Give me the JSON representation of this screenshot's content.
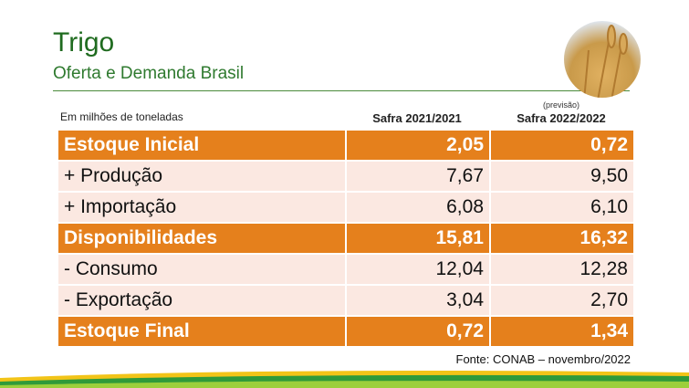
{
  "header": {
    "title": "Trigo",
    "subtitle": "Oferta e Demanda Brasil"
  },
  "table": {
    "unit_note": "Em milhões de toneladas",
    "columns": [
      "Safra 2021/2021",
      "Safra 2022/2022"
    ],
    "column_note": "(previsão)",
    "rows": [
      [
        "Estoque Inicial",
        "2,05",
        "0,72"
      ],
      [
        "+ Produção",
        "7,67",
        "9,50"
      ],
      [
        "+ Importação",
        "6,08",
        "6,10"
      ],
      [
        "Disponibilidades",
        "15,81",
        "16,32"
      ],
      [
        "- Consumo",
        "12,04",
        "12,28"
      ],
      [
        "- Exportação",
        "3,04",
        "2,70"
      ],
      [
        "Estoque Final",
        "0,72",
        "1,34"
      ]
    ]
  },
  "source": "Fonte: CONAB – novembro/2022"
}
